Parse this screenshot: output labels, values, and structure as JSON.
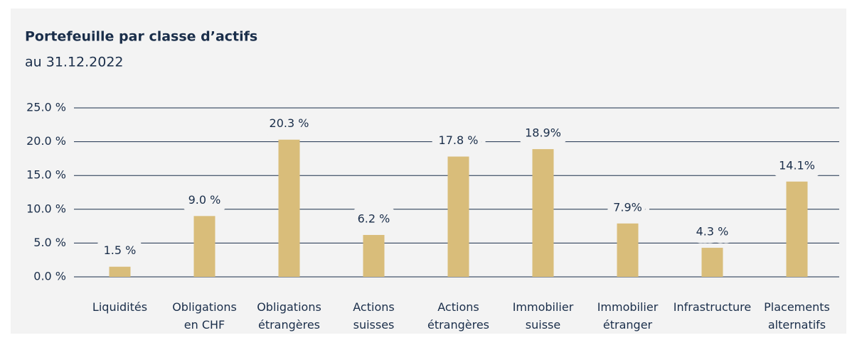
{
  "chart_data": {
    "type": "bar",
    "title": "Portefeuille par classe d’actifs",
    "subtitle": "au 31.12.2022",
    "categories": [
      "Liquidités",
      "Obligations\nen CHF",
      "Obligations\nétrangères",
      "Actions\nsuisses",
      "Actions\nétrangères",
      "Immobilier\nsuisse",
      "Immobilier\nétranger",
      "Infrastructure",
      "Placements\nalternatifs"
    ],
    "values": [
      1.5,
      9.0,
      20.3,
      6.2,
      17.8,
      18.9,
      7.9,
      4.3,
      14.1
    ],
    "value_labels": [
      "1.5 %",
      "9.0 %",
      "20.3 %",
      "6.2 %",
      "17.8 %",
      "18.9%",
      "7.9%",
      "4.3 %",
      "14.1%"
    ],
    "color": "#d9bd7a",
    "ylim": [
      0,
      25
    ],
    "yticks": [
      {
        "value": 0,
        "label": "0.0 %"
      },
      {
        "value": 5,
        "label": "5.0 %"
      },
      {
        "value": 10,
        "label": "10.0 %"
      },
      {
        "value": 15,
        "label": "15.0 %"
      },
      {
        "value": 20,
        "label": "20.0 %"
      },
      {
        "value": 25,
        "label": "25.0 %"
      }
    ],
    "grid": true
  }
}
